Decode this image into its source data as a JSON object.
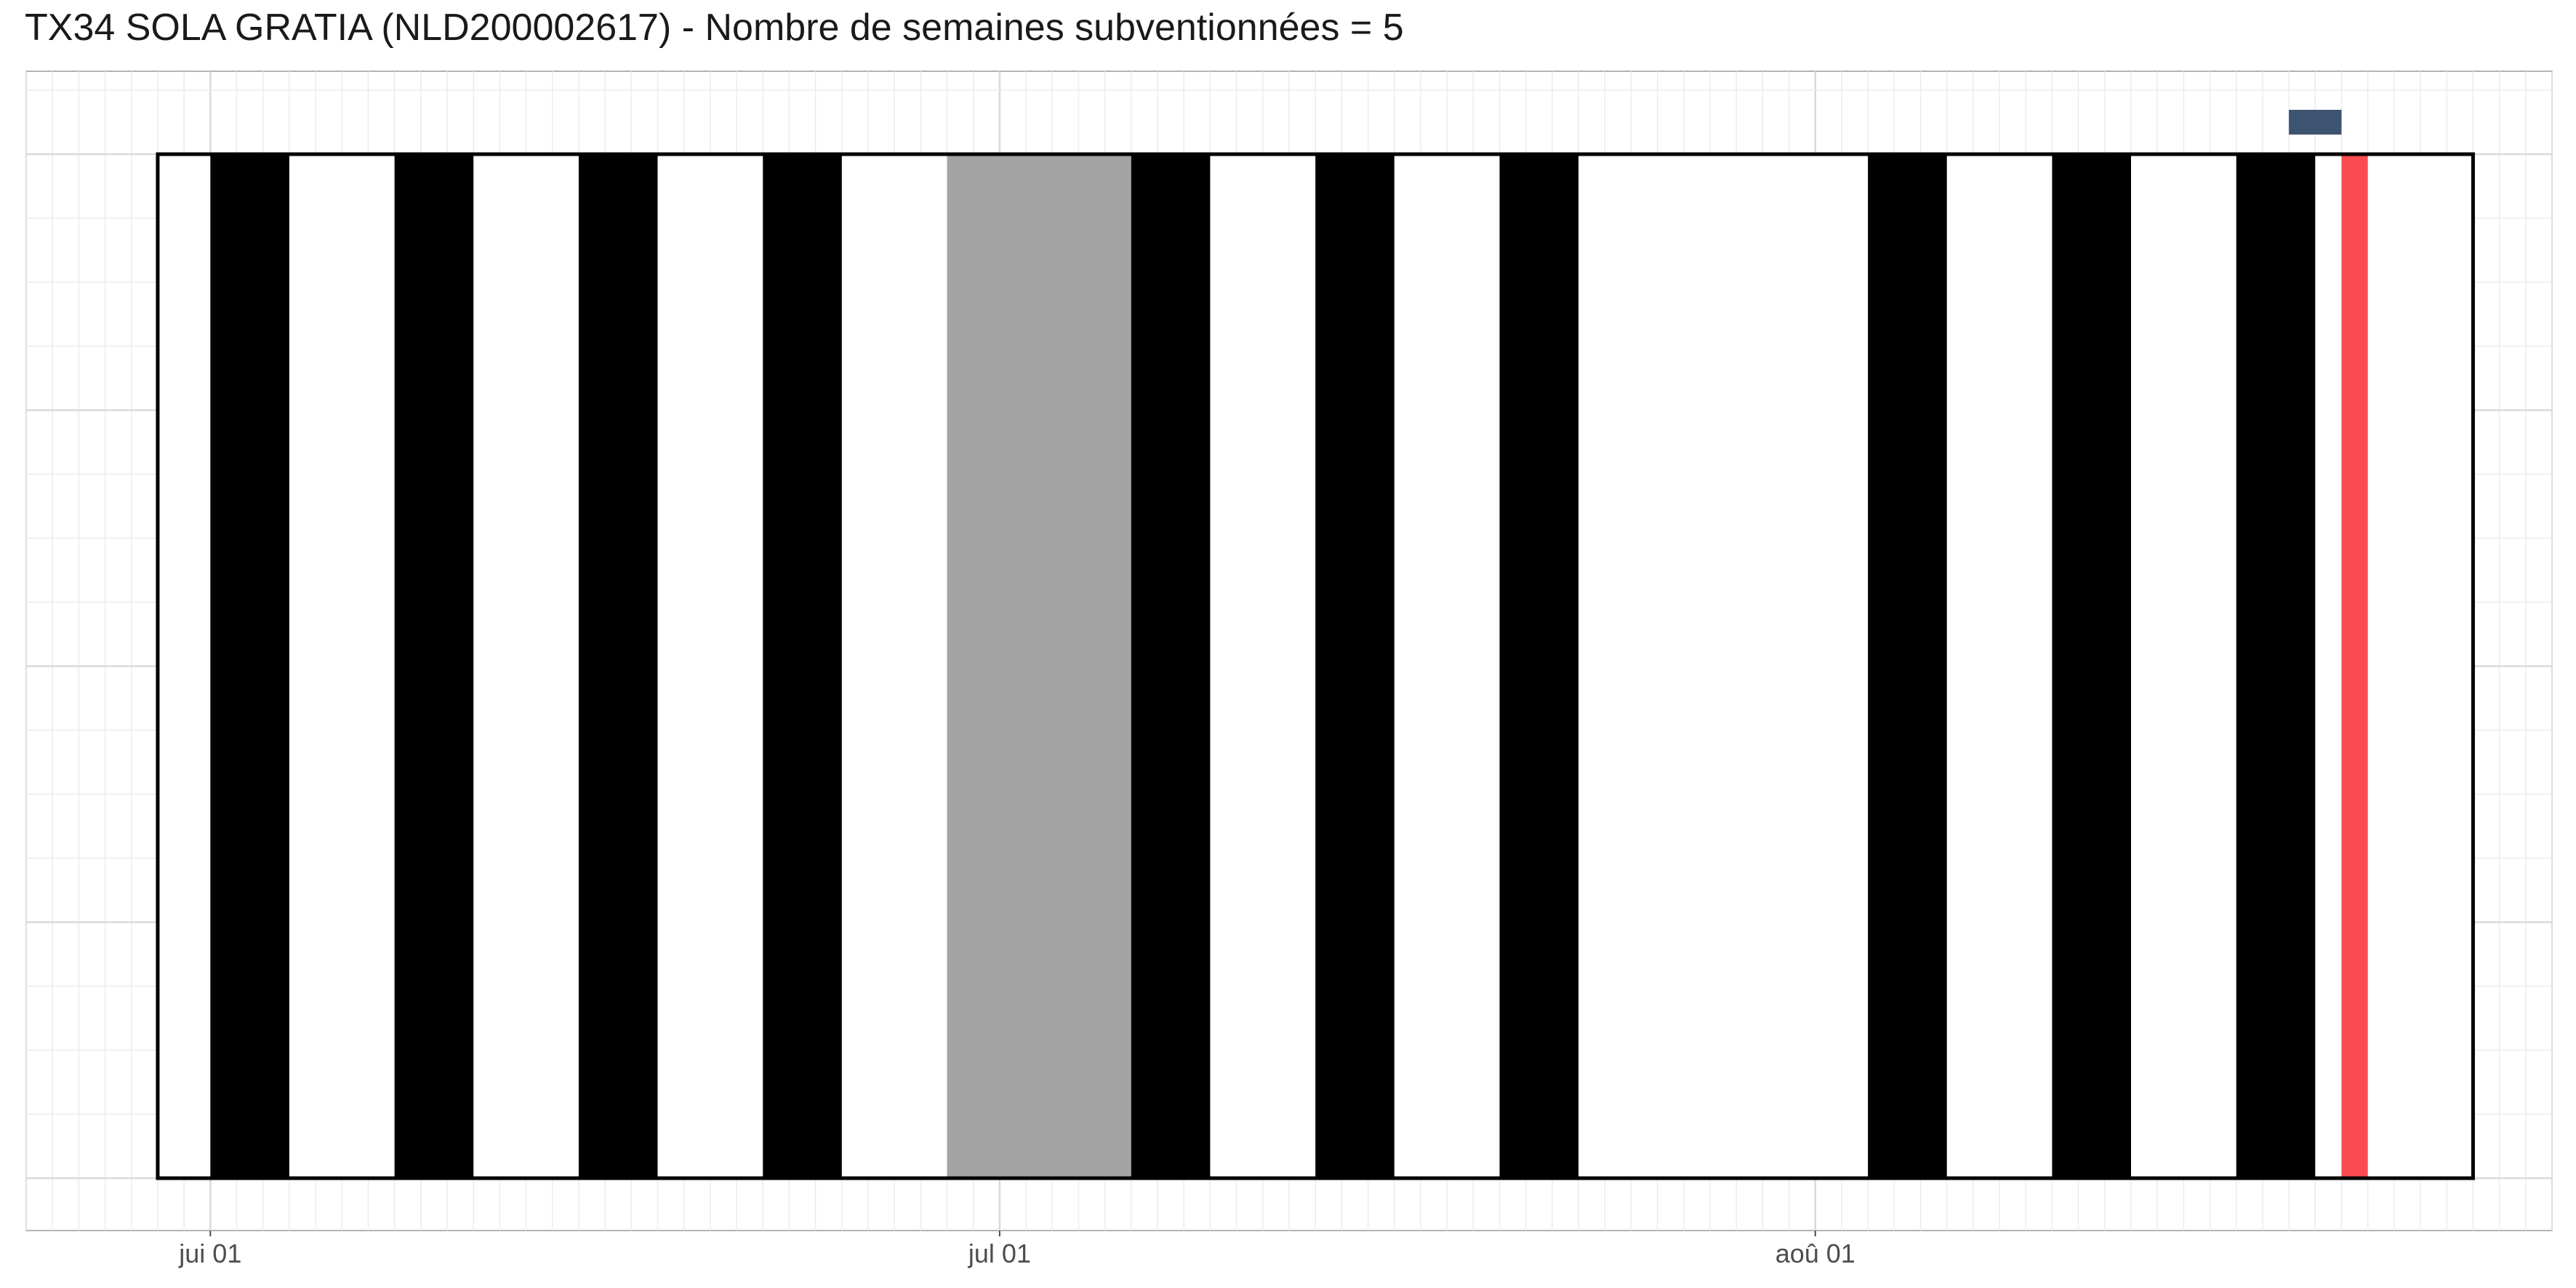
{
  "chart_data": {
    "type": "timeline",
    "title": "TX34 SOLA GRATIA (NLD200002617) - Nombre de semaines subventionnées = 5",
    "xlabel": "",
    "ylabel": "",
    "x_range": [
      "2023-05-25",
      "2023-08-29"
    ],
    "x_ticks": [
      {
        "date": "2023-06-01",
        "label": "jui 01"
      },
      {
        "date": "2023-07-01",
        "label": "jul 01"
      },
      {
        "date": "2023-08-01",
        "label": "aoû 01"
      }
    ],
    "period": {
      "start": "2023-05-30",
      "end": "2023-08-26"
    },
    "weekend_bars": [
      {
        "start": "2023-06-01",
        "end": "2023-06-04"
      },
      {
        "start": "2023-06-08",
        "end": "2023-06-11"
      },
      {
        "start": "2023-06-15",
        "end": "2023-06-18"
      },
      {
        "start": "2023-06-22",
        "end": "2023-06-25"
      },
      {
        "start": "2023-07-06",
        "end": "2023-07-09"
      },
      {
        "start": "2023-07-13",
        "end": "2023-07-16"
      },
      {
        "start": "2023-07-20",
        "end": "2023-07-23"
      },
      {
        "start": "2023-08-03",
        "end": "2023-08-06"
      },
      {
        "start": "2023-08-10",
        "end": "2023-08-13"
      },
      {
        "start": "2023-08-17",
        "end": "2023-08-20"
      }
    ],
    "grey_bars": [
      {
        "start": "2023-06-29",
        "end": "2023-07-07"
      }
    ],
    "red_bars": [
      {
        "start": "2023-08-21",
        "end": "2023-08-22"
      }
    ],
    "marker": {
      "start": "2023-08-19",
      "end": "2023-08-21"
    },
    "grid": true,
    "colors": {
      "weekend": "#000000",
      "grey": "#a3a3a3",
      "red": "#fa4b50",
      "marker": "#3d5470",
      "frame": "#000000",
      "grid_major": "#d9d9d9",
      "grid_minor": "#ececec",
      "panel_border": "#b3b3b3"
    }
  }
}
